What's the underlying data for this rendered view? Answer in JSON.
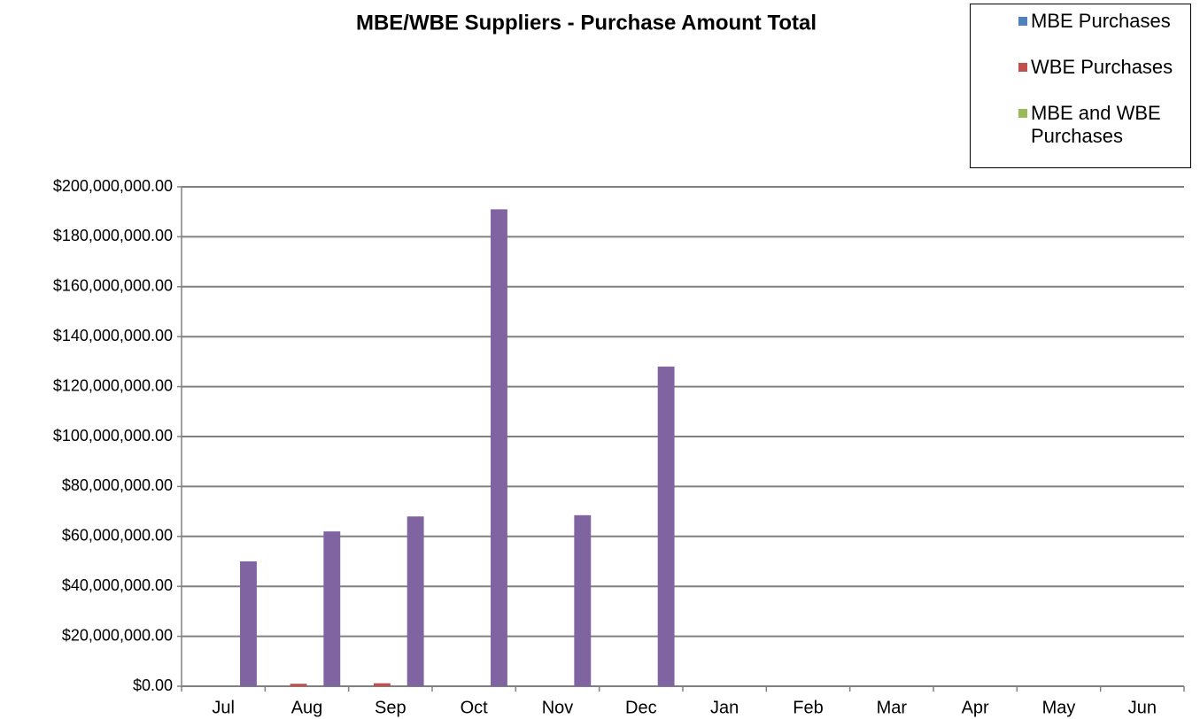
{
  "chart_data": {
    "type": "bar",
    "title": "MBE/WBE Suppliers - Purchase Amount Total",
    "categories": [
      "Jul",
      "Aug",
      "Sep",
      "Oct",
      "Nov",
      "Dec",
      "Jan",
      "Feb",
      "Mar",
      "Apr",
      "May",
      "Jun"
    ],
    "series": [
      {
        "name": "MBE Purchases",
        "color": "#4f81bd",
        "values": [
          0,
          0,
          0,
          0,
          0,
          0,
          null,
          null,
          null,
          null,
          null,
          null
        ]
      },
      {
        "name": "WBE Purchases",
        "color": "#c0504d",
        "values": [
          0,
          1000000,
          1200000,
          0,
          0,
          0,
          null,
          null,
          null,
          null,
          null,
          null
        ]
      },
      {
        "name": "MBE and WBE Purchases",
        "color": "#9bbb59",
        "values": [
          0,
          0,
          0,
          0,
          0,
          0,
          null,
          null,
          null,
          null,
          null,
          null
        ]
      },
      {
        "color": "#8064a2",
        "values": [
          50000000,
          62000000,
          68000000,
          191000000,
          68500000,
          128000000,
          null,
          null,
          null,
          null,
          null,
          null
        ]
      }
    ],
    "ylim": [
      0,
      200000000
    ],
    "yticks": [
      {
        "value": 0,
        "label": "$0.00"
      },
      {
        "value": 20000000,
        "label": "$20,000,000.00"
      },
      {
        "value": 40000000,
        "label": "$40,000,000.00"
      },
      {
        "value": 60000000,
        "label": "$60,000,000.00"
      },
      {
        "value": 80000000,
        "label": "$80,000,000.00"
      },
      {
        "value": 100000000,
        "label": "$100,000,000.00"
      },
      {
        "value": 120000000,
        "label": "$120,000,000.00"
      },
      {
        "value": 140000000,
        "label": "$140,000,000.00"
      },
      {
        "value": 160000000,
        "label": "$160,000,000.00"
      },
      {
        "value": 180000000,
        "label": "$180,000,000.00"
      },
      {
        "value": 200000000,
        "label": "$200,000,000.00"
      }
    ],
    "grid": true,
    "legend": "top-right"
  }
}
